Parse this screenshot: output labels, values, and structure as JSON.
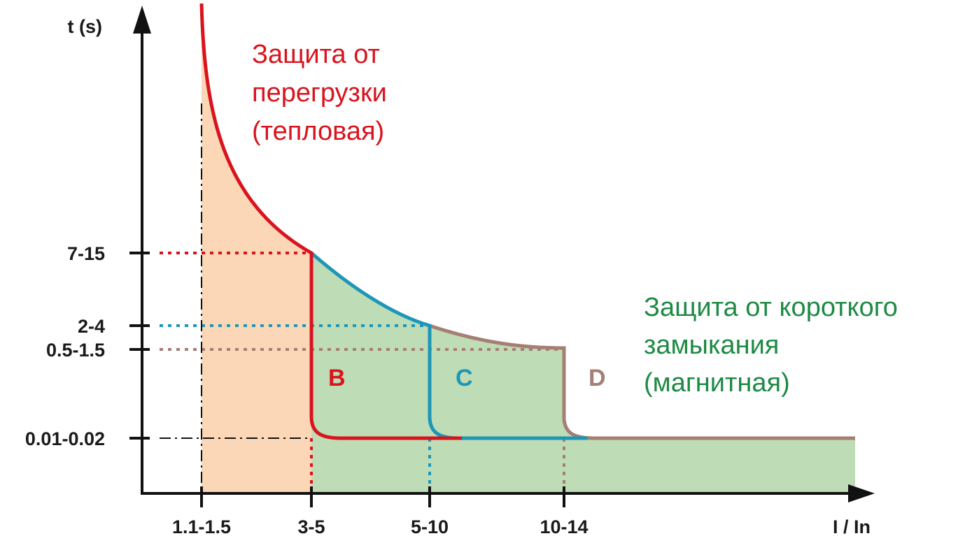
{
  "colors": {
    "thermal_fill": "#fbd7b8",
    "magnetic_fill": "#bedcb6",
    "curve_b": "#d9141d",
    "curve_c": "#1d97b8",
    "curve_d": "#a57e74",
    "thermal_text": "#d9141d",
    "magnetic_text": "#1e8a44",
    "axis": "#111111"
  },
  "chart_data": {
    "type": "line",
    "xlabel": "I / In",
    "ylabel": "t (s)",
    "x_ticks": [
      "1.1-1.5",
      "3-5",
      "5-10",
      "10-14"
    ],
    "y_ticks": [
      "7-15",
      "2-4",
      "0.5-1.5",
      "0.01-0.02"
    ],
    "series": [
      {
        "name": "B",
        "points": [
          [
            "3-5",
            "7-15"
          ],
          [
            "3-5",
            "0.01-0.02"
          ]
        ]
      },
      {
        "name": "C",
        "points": [
          [
            "3-5",
            "7-15"
          ],
          [
            "5-10",
            "2-4"
          ],
          [
            "5-10",
            "0.01-0.02"
          ]
        ]
      },
      {
        "name": "D",
        "points": [
          [
            "5-10",
            "2-4"
          ],
          [
            "10-14",
            "0.5-1.5"
          ],
          [
            "10-14",
            "0.01-0.02"
          ]
        ]
      }
    ],
    "annotations": {
      "thermal": [
        "Защита от",
        "перегрузки",
        "(тепловая)"
      ],
      "magnetic": [
        "Защита от короткого",
        "замыкания",
        "(магнитная)"
      ]
    }
  }
}
